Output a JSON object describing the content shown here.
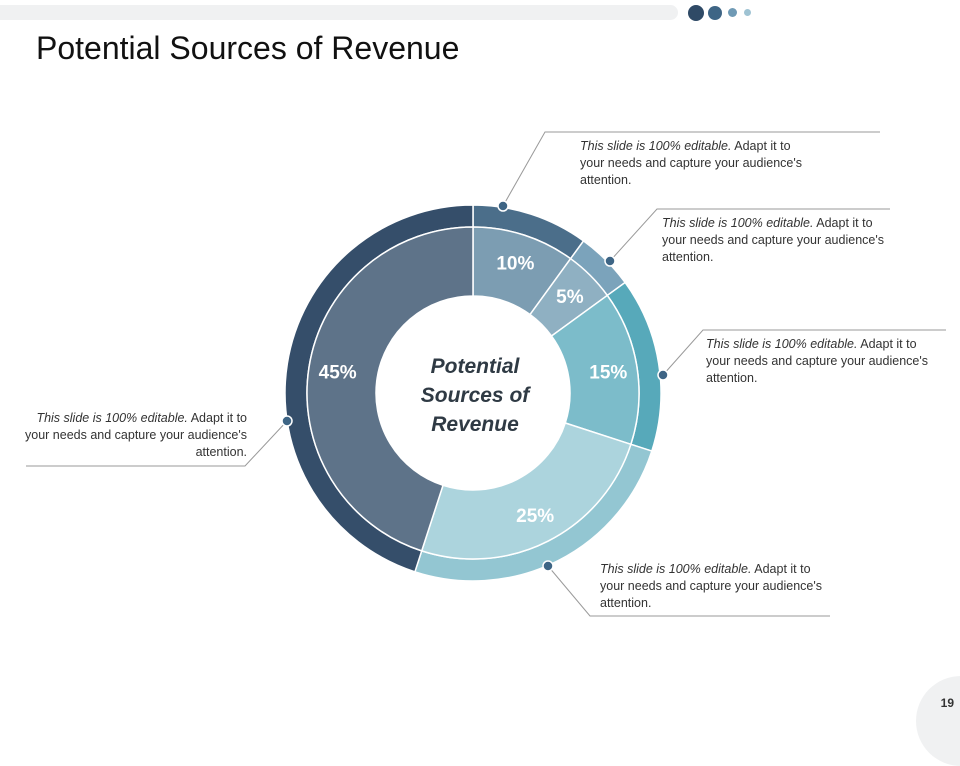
{
  "slide": {
    "title": "Potential Sources of Revenue",
    "page_number": "19"
  },
  "chart_data": {
    "type": "pie",
    "variant": "donut",
    "center_label": [
      "Potential",
      "Sources of",
      "Revenue"
    ],
    "series": [
      {
        "label": "10%",
        "value": 10,
        "color": "#7c9db2",
        "ring_color": "#4b6e8a"
      },
      {
        "label": "5%",
        "value": 5,
        "color": "#8fb0c2",
        "ring_color": "#7ba3bb"
      },
      {
        "label": "15%",
        "value": 15,
        "color": "#7cbcca",
        "ring_color": "#57a9ba"
      },
      {
        "label": "25%",
        "value": 25,
        "color": "#acd4dd",
        "ring_color": "#93c6d2"
      },
      {
        "label": "45%",
        "value": 45,
        "color": "#5e7389",
        "ring_color": "#354e6a"
      }
    ]
  },
  "callouts": [
    {
      "italic": "This slide is 100% editable.",
      "text": " Adapt it to your needs and capture your audience's attention."
    },
    {
      "italic": "This slide is 100% editable.",
      "text": " Adapt it to your needs and capture your audience's attention."
    },
    {
      "italic": "This slide is 100% editable.",
      "text": " Adapt it to your needs and capture your audience's attention."
    },
    {
      "italic": "This slide is 100% editable.",
      "text": " Adapt it to your needs and capture your audience's attention."
    },
    {
      "italic": "This slide is 100% editable.",
      "text": " Adapt it to your needs and capture your audience's attention."
    }
  ],
  "colors": {
    "dot_dark": "#2f4a66",
    "dot_mid": "#3e6585",
    "dot_light": "#6f9ab5",
    "dot_pale": "#9fc3d3",
    "connector": "#9a9a9a",
    "label_text": "#ffffff"
  }
}
